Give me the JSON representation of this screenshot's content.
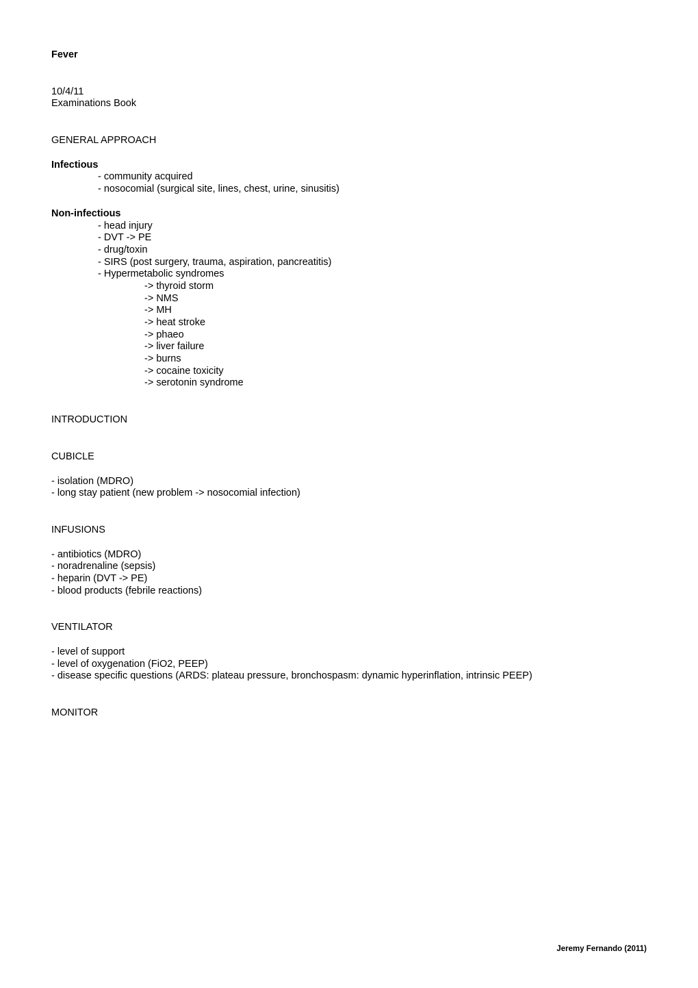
{
  "title": "Fever",
  "date": "10/4/11",
  "subtitle": "Examinations Book",
  "section_general": "GENERAL APPROACH",
  "infectious": {
    "heading": "Infectious",
    "items": [
      "- community acquired",
      "- nosocomial (surgical site, lines, chest, urine, sinusitis)"
    ]
  },
  "noninfectious": {
    "heading": "Non-infectious",
    "items": [
      "- head injury",
      "- DVT -> PE",
      "- drug/toxin",
      "- SIRS (post surgery, trauma, aspiration, pancreatitis)",
      "- Hypermetabolic syndromes"
    ],
    "subitems": [
      "-> thyroid storm",
      "-> NMS",
      "-> MH",
      "-> heat stroke",
      "-> phaeo",
      "-> liver failure",
      "-> burns",
      "-> cocaine toxicity",
      "-> serotonin syndrome"
    ]
  },
  "section_intro": "INTRODUCTION",
  "cubicle": {
    "heading": "CUBICLE",
    "items": [
      "- isolation (MDRO)",
      "- long stay patient (new problem -> nosocomial infection)"
    ]
  },
  "infusions": {
    "heading": "INFUSIONS",
    "items": [
      "- antibiotics (MDRO)",
      "- noradrenaline (sepsis)",
      "- heparin (DVT -> PE)",
      "- blood products (febrile reactions)"
    ]
  },
  "ventilator": {
    "heading": "VENTILATOR",
    "items": [
      "- level of support",
      "- level of oxygenation (FiO2, PEEP)",
      "- disease specific questions (ARDS: plateau pressure, bronchospasm: dynamic hyperinflation, intrinsic PEEP)"
    ]
  },
  "monitor": {
    "heading": "MONITOR"
  },
  "footer": "Jeremy Fernando (2011)"
}
